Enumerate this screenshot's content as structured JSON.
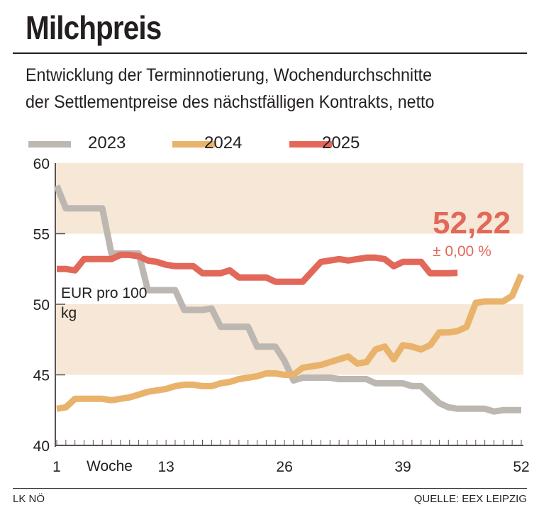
{
  "title": "Milchpreis",
  "subtitle": [
    "Entwicklung der Terminnotierung, Wochendurchschnitte",
    "der Settlementpreise des nächstfälligen Kontrakts, netto"
  ],
  "footer": {
    "left": "LK NÖ",
    "right": "QUELLE: EEX LEIPZIG"
  },
  "chart_data": {
    "type": "line",
    "ylabel": "EUR pro 100 kg",
    "xlabel": "Woche",
    "ylim": [
      40,
      60
    ],
    "xlim": [
      1,
      52
    ],
    "yticks": [
      40,
      45,
      50,
      55,
      60
    ],
    "xticks": [
      1,
      13,
      26,
      39,
      52
    ],
    "legend": "top",
    "band_color": "#f6e7d6",
    "series": [
      {
        "name": "2023",
        "color": "#bdb7b2",
        "values": [
          58.4,
          56.8,
          56.8,
          56.8,
          56.8,
          56.8,
          53.6,
          53.6,
          53.6,
          53.6,
          51.0,
          51.0,
          51.0,
          51.0,
          49.6,
          49.6,
          49.6,
          49.7,
          48.4,
          48.4,
          48.4,
          48.4,
          47.0,
          47.0,
          47.0,
          46.0,
          44.6,
          44.8,
          44.8,
          44.8,
          44.8,
          44.7,
          44.7,
          44.7,
          44.7,
          44.4,
          44.4,
          44.4,
          44.4,
          44.2,
          44.2,
          43.6,
          43.0,
          42.7,
          42.6,
          42.6,
          42.6,
          42.6,
          42.4,
          42.5,
          42.5,
          42.5
        ]
      },
      {
        "name": "2024",
        "color": "#e9b36b",
        "values": [
          42.6,
          42.7,
          43.3,
          43.3,
          43.3,
          43.3,
          43.2,
          43.3,
          43.4,
          43.6,
          43.8,
          43.9,
          44.0,
          44.2,
          44.3,
          44.3,
          44.2,
          44.2,
          44.4,
          44.5,
          44.7,
          44.8,
          44.9,
          45.1,
          45.1,
          45.0,
          45.0,
          45.5,
          45.6,
          45.7,
          45.9,
          46.1,
          46.3,
          45.8,
          45.9,
          46.8,
          47.0,
          46.1,
          47.1,
          47.0,
          46.8,
          47.1,
          48.0,
          48.0,
          48.1,
          48.4,
          50.1,
          50.2,
          50.2,
          50.2,
          50.6,
          52.1
        ]
      },
      {
        "name": "2025",
        "color": "#e2685a",
        "values": [
          52.5,
          52.5,
          52.4,
          53.2,
          53.2,
          53.2,
          53.2,
          53.5,
          53.5,
          53.4,
          53.1,
          53.0,
          52.8,
          52.7,
          52.7,
          52.7,
          52.2,
          52.2,
          52.2,
          52.4,
          51.9,
          51.9,
          51.9,
          51.9,
          51.6,
          51.6,
          51.6,
          51.6,
          52.3,
          53.0,
          53.1,
          53.2,
          53.1,
          53.2,
          53.3,
          53.3,
          53.2,
          52.7,
          53.0,
          53.0,
          53.0,
          52.2,
          52.2,
          52.2,
          52.22
        ]
      }
    ],
    "annotation": {
      "value": "52,22",
      "change": "± 0,00 %"
    }
  }
}
